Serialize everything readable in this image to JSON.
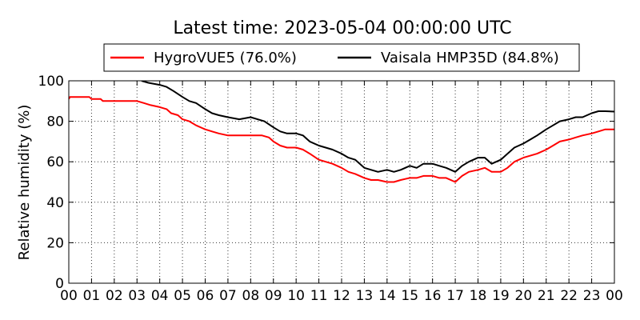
{
  "chart_data": {
    "type": "line",
    "title": "Latest time: 2023-05-04 00:00:00 UTC",
    "xlabel": "",
    "ylabel": "Relative humidity (%)",
    "xlim": [
      0,
      24
    ],
    "ylim": [
      0,
      100
    ],
    "yticks": [
      0,
      20,
      40,
      60,
      80,
      100
    ],
    "xtick_labels": [
      "00",
      "01",
      "02",
      "03",
      "04",
      "05",
      "06",
      "07",
      "08",
      "09",
      "10",
      "11",
      "12",
      "13",
      "14",
      "15",
      "16",
      "17",
      "18",
      "19",
      "20",
      "21",
      "22",
      "23",
      "00"
    ],
    "grid": true,
    "legend_placement": "top-center",
    "series": [
      {
        "name": "HygroVUE5 (76.0%)",
        "color": "#ff0000",
        "x": [
          0,
          0.05,
          0.9,
          1.0,
          1.4,
          1.5,
          3.0,
          3.3,
          3.6,
          4.0,
          4.3,
          4.5,
          4.8,
          5.0,
          5.3,
          5.6,
          6.0,
          6.3,
          6.6,
          7.0,
          7.5,
          8.0,
          8.5,
          8.8,
          9.0,
          9.3,
          9.6,
          10.0,
          10.3,
          10.6,
          11.0,
          11.3,
          11.6,
          12.0,
          12.3,
          12.6,
          13.0,
          13.3,
          13.6,
          14.0,
          14.3,
          14.6,
          15.0,
          15.3,
          15.6,
          16.0,
          16.3,
          16.6,
          17.0,
          17.3,
          17.6,
          18.0,
          18.3,
          18.6,
          19.0,
          19.3,
          19.6,
          20.0,
          20.3,
          20.6,
          21.0,
          21.3,
          21.6,
          22.0,
          22.3,
          22.6,
          23.0,
          23.3,
          23.6,
          24.0
        ],
        "y": [
          91,
          92,
          92,
          91,
          91,
          90,
          90,
          89,
          88,
          87,
          86,
          84,
          83,
          81,
          80,
          78,
          76,
          75,
          74,
          73,
          73,
          73,
          73,
          72,
          70,
          68,
          67,
          67,
          66,
          64,
          61,
          60,
          59,
          57,
          55,
          54,
          52,
          51,
          51,
          50,
          50,
          51,
          52,
          52,
          53,
          53,
          52,
          52,
          50,
          53,
          55,
          56,
          57,
          55,
          55,
          57,
          60,
          62,
          63,
          64,
          66,
          68,
          70,
          71,
          72,
          73,
          74,
          75,
          76,
          76
        ]
      },
      {
        "name": "Vaisala HMP35D (84.8%)",
        "color": "#000000",
        "x": [
          3.2,
          3.5,
          4.0,
          4.3,
          4.6,
          5.0,
          5.3,
          5.6,
          6.0,
          6.3,
          6.6,
          7.0,
          7.5,
          8.0,
          8.3,
          8.6,
          9.0,
          9.3,
          9.6,
          10.0,
          10.3,
          10.6,
          11.0,
          11.3,
          11.6,
          12.0,
          12.3,
          12.6,
          13.0,
          13.3,
          13.6,
          14.0,
          14.3,
          14.6,
          15.0,
          15.3,
          15.6,
          16.0,
          16.3,
          16.6,
          17.0,
          17.3,
          17.6,
          18.0,
          18.3,
          18.6,
          19.0,
          19.3,
          19.6,
          20.0,
          20.3,
          20.6,
          21.0,
          21.3,
          21.6,
          22.0,
          22.3,
          22.6,
          23.0,
          23.3,
          23.6,
          24.0
        ],
        "y": [
          100,
          99,
          98,
          97,
          95,
          92,
          90,
          89,
          86,
          84,
          83,
          82,
          81,
          82,
          81,
          80,
          77,
          75,
          74,
          74,
          73,
          70,
          68,
          67,
          66,
          64,
          62,
          61,
          57,
          56,
          55,
          56,
          55,
          56,
          58,
          57,
          59,
          59,
          58,
          57,
          55,
          58,
          60,
          62,
          62,
          59,
          61,
          64,
          67,
          69,
          71,
          73,
          76,
          78,
          80,
          81,
          82,
          82,
          84,
          85,
          85,
          84.8
        ]
      }
    ]
  }
}
